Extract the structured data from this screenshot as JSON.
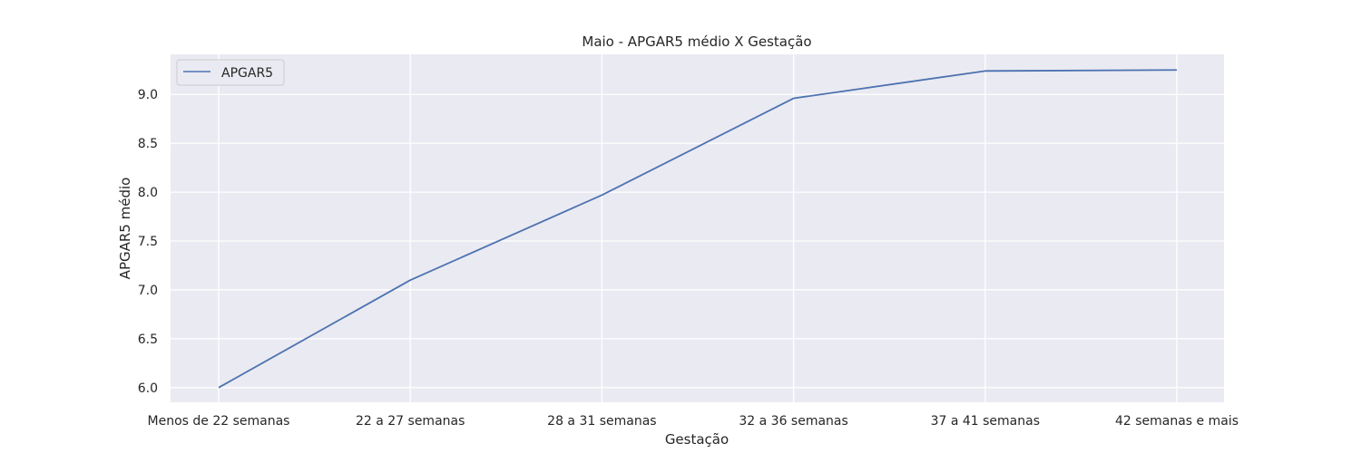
{
  "chart_data": {
    "type": "line",
    "title": "Maio - APGAR5 médio X Gestação",
    "xlabel": "Gestação",
    "ylabel": "APGAR5 médio",
    "categories": [
      "Menos de 22 semanas",
      "22 a 27 semanas",
      "28 a 31 semanas",
      "32 a 36 semanas",
      "37 a 41 semanas",
      "42 semanas e mais"
    ],
    "series": [
      {
        "name": "APGAR5",
        "values": [
          6.0,
          7.1,
          7.97,
          8.96,
          9.24,
          9.25
        ]
      }
    ],
    "yticks": [
      "6.0",
      "6.5",
      "7.0",
      "7.5",
      "8.0",
      "8.5",
      "9.0"
    ],
    "ylim": [
      5.85,
      9.41
    ],
    "grid": true,
    "legend_position": "upper-left",
    "colors": {
      "background": "#eaeaf2",
      "grid": "#ffffff",
      "line": "#4c72b0",
      "text": "#262626"
    }
  }
}
